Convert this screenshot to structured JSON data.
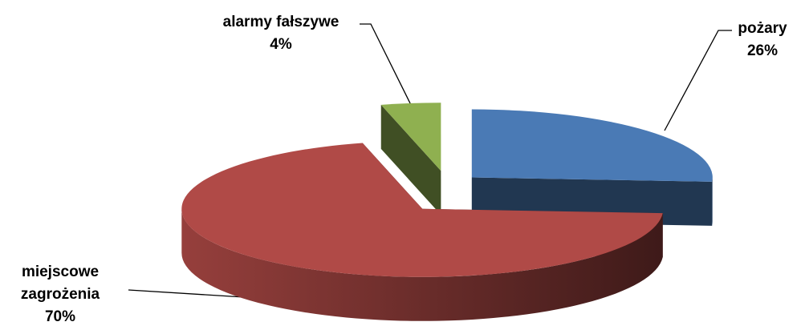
{
  "chart_data": {
    "type": "pie3d",
    "categories": [
      "pożary",
      "miejscowe zagrożenia",
      "alarmy fałszywe"
    ],
    "values": [
      26,
      70,
      4
    ],
    "value_labels": [
      "26%",
      "70%",
      "4%"
    ],
    "colors": [
      "#4a7ab5",
      "#b04a47",
      "#8fb050"
    ]
  }
}
